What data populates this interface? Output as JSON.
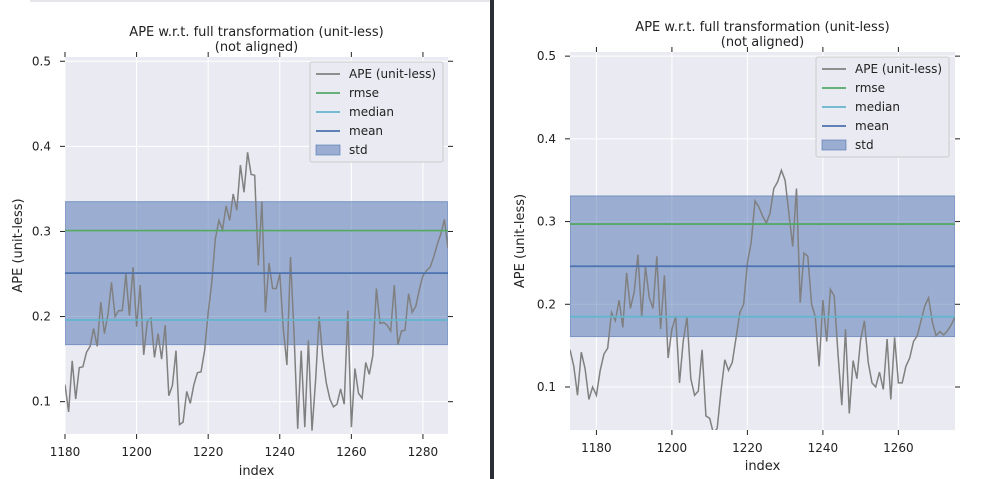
{
  "chart_data": [
    {
      "type": "line",
      "title": "APE w.r.t. full transformation (unit-less)",
      "subtitle": "(not aligned)",
      "xlabel": "index",
      "ylabel": "APE (unit-less)",
      "xlim": [
        1180,
        1287
      ],
      "ylim": [
        0.062,
        0.505
      ],
      "xticks": [
        1180,
        1200,
        1220,
        1240,
        1260,
        1280
      ],
      "yticks": [
        0.1,
        0.2,
        0.3,
        0.4,
        0.5
      ],
      "grid": true,
      "legend_position": "top-right",
      "legend": [
        "APE (unit-less)",
        "rmse",
        "median",
        "mean",
        "std"
      ],
      "stats": {
        "rmse": 0.301,
        "median": 0.196,
        "mean": 0.251,
        "std_low": 0.167,
        "std_high": 0.335
      },
      "colors": {
        "ape": "#808080",
        "rmse": "#55a868",
        "median": "#64b5cd",
        "mean": "#4c72b0",
        "std": "#4c72b0",
        "background": "#eaeaf2"
      },
      "series": [
        {
          "name": "APE (unit-less)",
          "x": [
            1180,
            1181,
            1182,
            1183,
            1184,
            1185,
            1186,
            1187,
            1188,
            1189,
            1190,
            1191,
            1192,
            1193,
            1194,
            1195,
            1196,
            1197,
            1198,
            1199,
            1200,
            1201,
            1202,
            1203,
            1204,
            1205,
            1206,
            1207,
            1208,
            1209,
            1210,
            1211,
            1212,
            1213,
            1214,
            1215,
            1216,
            1217,
            1218,
            1219,
            1220,
            1221,
            1222,
            1223,
            1224,
            1225,
            1226,
            1227,
            1228,
            1229,
            1230,
            1231,
            1232,
            1233,
            1234,
            1235,
            1236,
            1237,
            1238,
            1239,
            1240,
            1241,
            1242,
            1243,
            1244,
            1245,
            1246,
            1247,
            1248,
            1249,
            1250,
            1251,
            1252,
            1253,
            1254,
            1255,
            1256,
            1257,
            1258,
            1259,
            1260,
            1261,
            1262,
            1263,
            1264,
            1265,
            1266,
            1267,
            1268,
            1269,
            1270,
            1271,
            1272,
            1273,
            1274,
            1275,
            1276,
            1277,
            1278,
            1279,
            1280,
            1281,
            1282,
            1283,
            1284,
            1285,
            1286,
            1287
          ],
          "y": [
            0.12,
            0.088,
            0.148,
            0.103,
            0.14,
            0.141,
            0.158,
            0.165,
            0.186,
            0.165,
            0.217,
            0.18,
            0.203,
            0.24,
            0.2,
            0.207,
            0.207,
            0.25,
            0.201,
            0.258,
            0.188,
            0.237,
            0.155,
            0.194,
            0.198,
            0.152,
            0.18,
            0.15,
            0.19,
            0.107,
            0.119,
            0.16,
            0.073,
            0.076,
            0.112,
            0.098,
            0.12,
            0.134,
            0.135,
            0.16,
            0.205,
            0.24,
            0.291,
            0.313,
            0.302,
            0.33,
            0.313,
            0.344,
            0.325,
            0.378,
            0.346,
            0.393,
            0.367,
            0.366,
            0.26,
            0.335,
            0.205,
            0.263,
            0.233,
            0.233,
            0.25,
            0.186,
            0.143,
            0.27,
            0.178,
            0.068,
            0.16,
            0.07,
            0.172,
            0.066,
            0.125,
            0.2,
            0.153,
            0.122,
            0.103,
            0.094,
            0.097,
            0.115,
            0.097,
            0.207,
            0.07,
            0.139,
            0.11,
            0.104,
            0.146,
            0.132,
            0.154,
            0.233,
            0.192,
            0.193,
            0.19,
            0.183,
            0.237,
            0.167,
            0.183,
            0.184,
            0.227,
            0.205,
            0.212,
            0.232,
            0.248,
            0.254,
            0.258,
            0.27,
            0.285,
            0.297,
            0.314,
            0.28
          ]
        }
      ]
    },
    {
      "type": "line",
      "title": "APE w.r.t. full transformation (unit-less)",
      "subtitle": "(not aligned)",
      "xlabel": "index",
      "ylabel": "APE (unit-less)",
      "xlim": [
        1173,
        1275
      ],
      "ylim": [
        0.048,
        0.505
      ],
      "xticks": [
        1180,
        1200,
        1220,
        1240,
        1260
      ],
      "yticks": [
        0.1,
        0.2,
        0.3,
        0.4,
        0.5
      ],
      "grid": true,
      "legend_position": "top-right",
      "legend": [
        "APE (unit-less)",
        "rmse",
        "median",
        "mean",
        "std"
      ],
      "stats": {
        "rmse": 0.297,
        "median": 0.185,
        "mean": 0.246,
        "std_low": 0.161,
        "std_high": 0.331
      },
      "colors": {
        "ape": "#808080",
        "rmse": "#55a868",
        "median": "#64b5cd",
        "mean": "#4c72b0",
        "std": "#4c72b0",
        "background": "#eaeaf2"
      },
      "series": [
        {
          "name": "APE (unit-less)",
          "x": [
            1173,
            1174,
            1175,
            1176,
            1177,
            1178,
            1179,
            1180,
            1181,
            1182,
            1183,
            1184,
            1185,
            1186,
            1187,
            1188,
            1189,
            1190,
            1191,
            1192,
            1193,
            1194,
            1195,
            1196,
            1197,
            1198,
            1199,
            1200,
            1201,
            1202,
            1203,
            1204,
            1205,
            1206,
            1207,
            1208,
            1209,
            1210,
            1211,
            1212,
            1213,
            1214,
            1215,
            1216,
            1217,
            1218,
            1219,
            1220,
            1221,
            1222,
            1223,
            1224,
            1225,
            1226,
            1227,
            1228,
            1229,
            1230,
            1231,
            1232,
            1233,
            1234,
            1235,
            1236,
            1237,
            1238,
            1239,
            1240,
            1241,
            1242,
            1243,
            1244,
            1245,
            1246,
            1247,
            1248,
            1249,
            1250,
            1251,
            1252,
            1253,
            1254,
            1255,
            1256,
            1257,
            1258,
            1259,
            1260,
            1261,
            1262,
            1263,
            1264,
            1265,
            1266,
            1267,
            1268,
            1269,
            1270,
            1271,
            1272,
            1273,
            1274,
            1275
          ],
          "y": [
            0.145,
            0.125,
            0.09,
            0.142,
            0.122,
            0.085,
            0.1,
            0.09,
            0.12,
            0.14,
            0.147,
            0.19,
            0.18,
            0.205,
            0.172,
            0.238,
            0.195,
            0.215,
            0.26,
            0.185,
            0.245,
            0.208,
            0.195,
            0.258,
            0.17,
            0.235,
            0.135,
            0.17,
            0.185,
            0.105,
            0.155,
            0.185,
            0.11,
            0.09,
            0.095,
            0.145,
            0.065,
            0.062,
            0.044,
            0.05,
            0.095,
            0.133,
            0.12,
            0.13,
            0.16,
            0.19,
            0.2,
            0.25,
            0.275,
            0.325,
            0.318,
            0.307,
            0.298,
            0.31,
            0.34,
            0.348,
            0.362,
            0.35,
            0.31,
            0.27,
            0.34,
            0.202,
            0.262,
            0.258,
            0.2,
            0.185,
            0.125,
            0.205,
            0.155,
            0.218,
            0.21,
            0.14,
            0.078,
            0.17,
            0.068,
            0.132,
            0.11,
            0.157,
            0.18,
            0.13,
            0.105,
            0.1,
            0.118,
            0.097,
            0.158,
            0.085,
            0.16,
            0.105,
            0.105,
            0.125,
            0.135,
            0.155,
            0.162,
            0.18,
            0.198,
            0.208,
            0.178,
            0.162,
            0.167,
            0.163,
            0.168,
            0.175,
            0.185
          ]
        }
      ]
    }
  ]
}
